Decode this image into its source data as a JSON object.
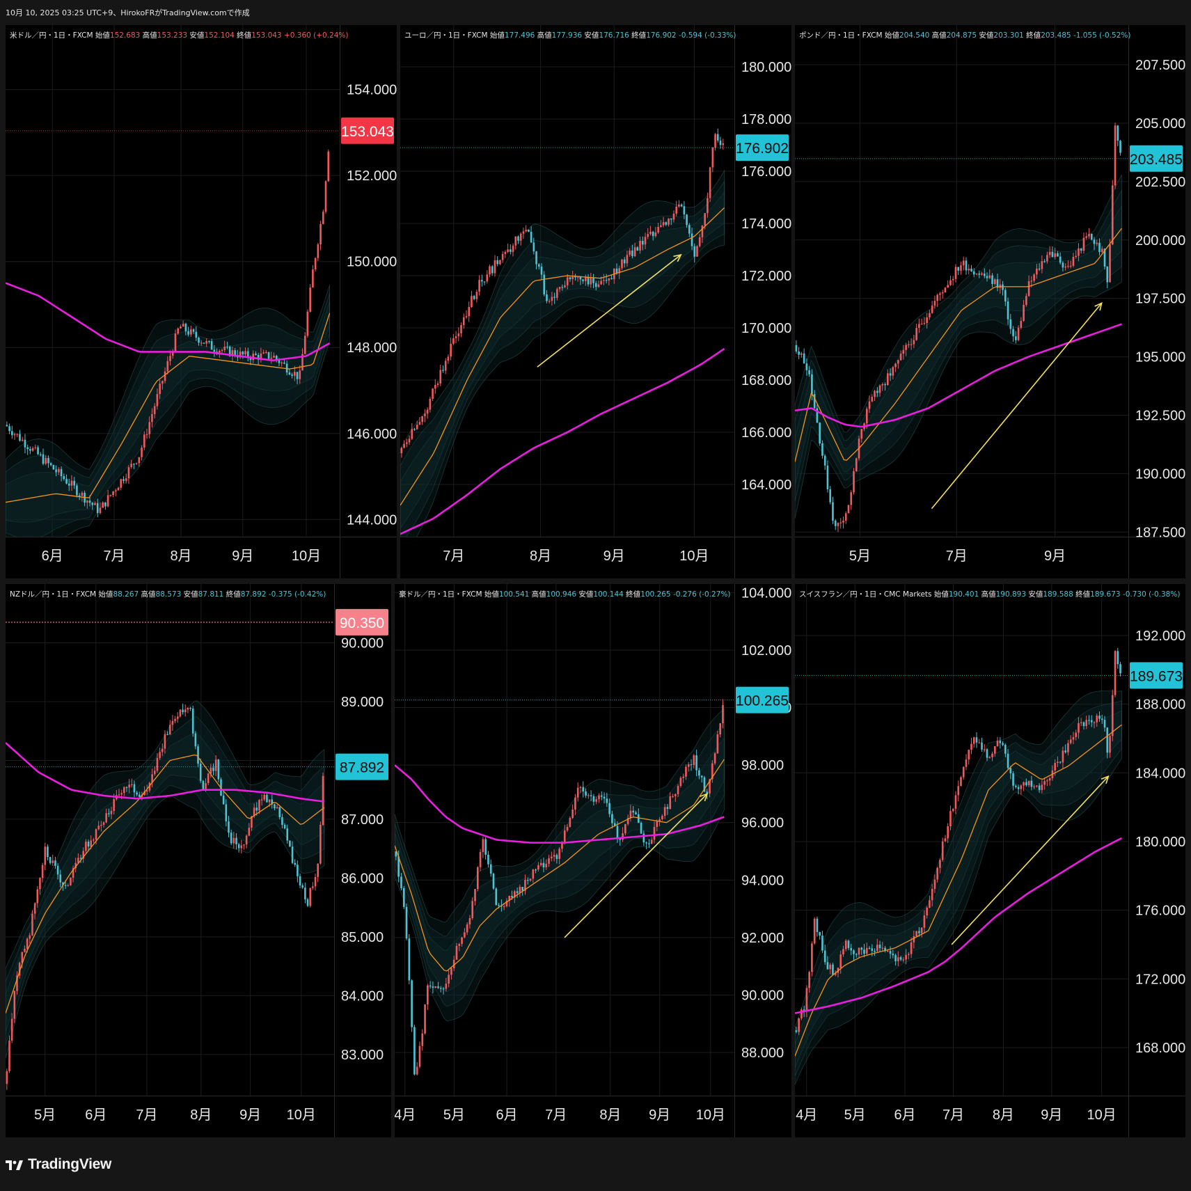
{
  "header": {
    "caption": "10月 10, 2025 03:25 UTC+9、HirokoFRがTradingView.comで作成"
  },
  "footer": {
    "brand": "TradingView"
  },
  "colors": {
    "background": "#000000",
    "frame": "#161616",
    "grid": "#1d1d1d",
    "up_candle": "#f05a5e",
    "down_candle": "#4ec3d3",
    "ema_fast": "#f7931a",
    "ma_long": "#e91ee0",
    "band": "#2d5a55",
    "trend_arrow": "#f5e25c",
    "price_tag_red": "#f23645",
    "price_tag_cyan": "#22c3d6",
    "price_tag_pink": "#f7818b"
  },
  "chart_data": [
    {
      "type": "candlestick",
      "legend": {
        "name": "米ドル／円・1日・FXCM",
        "open_label": "始値",
        "open": "152.683",
        "high_label": "高値",
        "high": "153.233",
        "low_label": "安値",
        "low": "152.104",
        "close_label": "終値",
        "close": "153.043",
        "change": "+0.360 (+0.24%)",
        "direction": "up"
      },
      "y_range": [
        143.6,
        155.5
      ],
      "y_ticks": [
        "154.000",
        "152.000",
        "150.000",
        "148.000",
        "146.000",
        "144.000"
      ],
      "x_ticks": [
        "6月",
        "7月",
        "8月",
        "9月",
        "10月"
      ],
      "x_tick_pos": [
        0.14,
        0.325,
        0.525,
        0.71,
        0.9
      ],
      "price_tag": {
        "text": "153.043",
        "value": 153.043,
        "style": "red"
      },
      "series": [
        {
          "name": "",
          "role": "price",
          "x": [
            0,
            0.28,
            0.4,
            0.52,
            0.62,
            0.72,
            0.8,
            0.88,
            0.92,
            0.95,
            0.97
          ],
          "values": [
            146.2,
            144.2,
            145.5,
            148.5,
            148.0,
            147.8,
            147.8,
            147.3,
            149.8,
            151.2,
            153.0
          ]
        },
        {
          "name": "",
          "role": "ma_long",
          "x": [
            0,
            0.1,
            0.2,
            0.3,
            0.4,
            0.5,
            0.6,
            0.7,
            0.8,
            0.9,
            0.97
          ],
          "values": [
            149.5,
            149.2,
            148.7,
            148.2,
            147.9,
            147.9,
            147.9,
            147.8,
            147.7,
            147.8,
            148.1
          ]
        },
        {
          "name": "",
          "role": "ema_fast",
          "x": [
            0,
            0.15,
            0.25,
            0.35,
            0.45,
            0.55,
            0.65,
            0.75,
            0.85,
            0.92,
            0.97
          ],
          "values": [
            144.4,
            144.6,
            144.5,
            145.8,
            147.2,
            147.8,
            147.7,
            147.6,
            147.5,
            147.6,
            148.8
          ]
        }
      ]
    },
    {
      "type": "candlestick",
      "legend": {
        "name": "ユーロ／円・1日・FXCM",
        "open_label": "始値",
        "open": "177.496",
        "high_label": "高値",
        "high": "177.936",
        "low_label": "安値",
        "low": "176.716",
        "close_label": "終値",
        "close": "176.902",
        "change": "-0.594 (-0.33%)",
        "direction": "down"
      },
      "y_range": [
        162.0,
        181.6
      ],
      "y_ticks": [
        "180.000",
        "178.000",
        "176.000",
        "174.000",
        "172.000",
        "170.000",
        "168.000",
        "166.000",
        "164.000"
      ],
      "x_ticks": [
        "7月",
        "8月",
        "9月",
        "10月"
      ],
      "x_tick_pos": [
        0.16,
        0.42,
        0.64,
        0.88
      ],
      "price_tag": {
        "text": "176.902",
        "value": 176.902,
        "style": "cyan"
      },
      "trend_arrow": {
        "from": [
          0.41,
          168.5
        ],
        "to": [
          0.84,
          172.8
        ]
      },
      "series": [
        {
          "name": "",
          "role": "price",
          "x": [
            0,
            0.08,
            0.16,
            0.24,
            0.32,
            0.38,
            0.44,
            0.52,
            0.6,
            0.7,
            0.78,
            0.84,
            0.88,
            0.91,
            0.94,
            0.97
          ],
          "values": [
            165.2,
            167.0,
            169.5,
            171.8,
            172.9,
            174.0,
            171.0,
            172.0,
            171.6,
            173.0,
            173.8,
            174.8,
            172.8,
            174.0,
            177.5,
            176.9
          ]
        },
        {
          "name": "",
          "role": "ma_long",
          "x": [
            0,
            0.1,
            0.2,
            0.3,
            0.4,
            0.5,
            0.6,
            0.7,
            0.8,
            0.9,
            0.97
          ],
          "values": [
            162.1,
            162.7,
            163.6,
            164.6,
            165.4,
            166.0,
            166.7,
            167.3,
            167.9,
            168.6,
            169.2
          ]
        },
        {
          "name": "",
          "role": "ema_fast",
          "x": [
            0,
            0.1,
            0.2,
            0.3,
            0.4,
            0.5,
            0.6,
            0.7,
            0.8,
            0.88,
            0.97
          ],
          "values": [
            163.2,
            165.2,
            168.0,
            170.4,
            171.8,
            172.0,
            171.9,
            172.3,
            173.0,
            173.5,
            174.6
          ]
        }
      ]
    },
    {
      "type": "candlestick",
      "legend": {
        "name": "ポンド／円・1日・FXCM",
        "open_label": "始値",
        "open": "204.540",
        "high_label": "高値",
        "high": "204.875",
        "low_label": "安値",
        "low": "203.301",
        "close_label": "終値",
        "close": "203.485",
        "change": "-1.055 (-0.52%)",
        "direction": "down"
      },
      "y_range": [
        187.3,
        209.2
      ],
      "y_ticks": [
        "207.500",
        "205.000",
        "202.500",
        "200.000",
        "197.500",
        "195.000",
        "192.500",
        "190.000",
        "187.500"
      ],
      "x_ticks": [
        "5月",
        "7月",
        "9月"
      ],
      "x_tick_pos": [
        0.195,
        0.485,
        0.78
      ],
      "price_tag": {
        "text": "203.485",
        "value": 203.485,
        "style": "cyan"
      },
      "trend_arrow": {
        "from": [
          0.41,
          188.5
        ],
        "to": [
          0.92,
          197.3
        ]
      },
      "series": [
        {
          "name": "",
          "role": "price",
          "x": [
            0,
            0.04,
            0.08,
            0.12,
            0.16,
            0.2,
            0.24,
            0.3,
            0.36,
            0.44,
            0.5,
            0.56,
            0.62,
            0.66,
            0.7,
            0.76,
            0.82,
            0.88,
            0.92,
            0.94,
            0.96,
            0.98
          ],
          "values": [
            195.5,
            194.5,
            191.0,
            187.6,
            188.5,
            192.0,
            193.5,
            194.5,
            196.0,
            197.8,
            199.0,
            198.5,
            198.0,
            195.5,
            198.0,
            199.5,
            198.8,
            200.2,
            199.5,
            198.0,
            205.0,
            203.5
          ]
        },
        {
          "name": "",
          "role": "ma_long",
          "x": [
            0,
            0.05,
            0.1,
            0.15,
            0.2,
            0.3,
            0.4,
            0.5,
            0.6,
            0.7,
            0.8,
            0.9,
            0.98
          ],
          "values": [
            192.7,
            192.8,
            192.4,
            192.1,
            192.0,
            192.3,
            192.8,
            193.6,
            194.4,
            195.0,
            195.5,
            196.0,
            196.4
          ]
        },
        {
          "name": "",
          "role": "ema_fast",
          "x": [
            0,
            0.05,
            0.1,
            0.15,
            0.2,
            0.3,
            0.4,
            0.5,
            0.6,
            0.7,
            0.8,
            0.9,
            0.98
          ],
          "values": [
            190.5,
            193.5,
            192.0,
            190.5,
            191.2,
            193.0,
            195.0,
            197.0,
            198.0,
            198.0,
            198.5,
            199.0,
            200.5
          ]
        }
      ]
    },
    {
      "type": "candlestick",
      "legend": {
        "name": "NZドル／円・1日・FXCM",
        "open_label": "始値",
        "open": "88.267",
        "high_label": "高値",
        "high": "88.573",
        "low_label": "安値",
        "low": "87.811",
        "close_label": "終値",
        "close": "87.892",
        "change": "-0.375 (-0.42%)",
        "direction": "down"
      },
      "y_range": [
        82.3,
        91.0
      ],
      "y_ticks": [
        "90.000",
        "89.000",
        "88.000",
        "87.000",
        "86.000",
        "85.000",
        "84.000",
        "83.000"
      ],
      "x_ticks": [
        "5月",
        "6月",
        "7月",
        "8月",
        "9月",
        "10月"
      ],
      "x_tick_pos": [
        0.12,
        0.275,
        0.43,
        0.595,
        0.745,
        0.9
      ],
      "price_tag": {
        "text": "87.892",
        "value": 87.892,
        "style": "cyan"
      },
      "ref_line": {
        "text": "90.350",
        "value": 90.35,
        "style": "pink"
      },
      "series": [
        {
          "name": "",
          "role": "price",
          "x": [
            0,
            0.03,
            0.07,
            0.12,
            0.18,
            0.24,
            0.3,
            0.36,
            0.42,
            0.48,
            0.52,
            0.56,
            0.6,
            0.64,
            0.68,
            0.72,
            0.76,
            0.8,
            0.84,
            0.88,
            0.92,
            0.95,
            0.97
          ],
          "values": [
            82.5,
            84.3,
            85.0,
            86.5,
            85.8,
            86.5,
            87.0,
            87.6,
            87.4,
            88.3,
            88.8,
            88.9,
            87.5,
            88.0,
            86.7,
            86.5,
            87.2,
            87.4,
            87.0,
            86.2,
            85.6,
            86.2,
            88.0
          ]
        },
        {
          "name": "",
          "role": "ma_long",
          "x": [
            0,
            0.1,
            0.2,
            0.3,
            0.4,
            0.5,
            0.6,
            0.7,
            0.8,
            0.9,
            0.97
          ],
          "values": [
            88.3,
            87.8,
            87.5,
            87.4,
            87.35,
            87.4,
            87.5,
            87.5,
            87.45,
            87.35,
            87.3
          ]
        },
        {
          "name": "",
          "role": "ema_fast",
          "x": [
            0,
            0.06,
            0.12,
            0.2,
            0.3,
            0.4,
            0.5,
            0.58,
            0.66,
            0.74,
            0.82,
            0.9,
            0.97
          ],
          "values": [
            83.7,
            84.7,
            85.4,
            86.1,
            86.8,
            87.3,
            88.0,
            88.1,
            87.5,
            87.0,
            87.3,
            86.9,
            87.2
          ]
        }
      ]
    },
    {
      "type": "candlestick",
      "legend": {
        "name": "豪ドル／円・1日・FXCM",
        "open_label": "始値",
        "open": "100.541",
        "high_label": "高値",
        "high": "100.946",
        "low_label": "安値",
        "low": "100.144",
        "close_label": "終値",
        "close": "100.265",
        "change": "-0.276 (-0.27%)",
        "direction": "down"
      },
      "y_range": [
        86.5,
        104.3
      ],
      "y_ticks": [
        "104.000",
        "102.000",
        "100.000",
        "98.000",
        "96.000",
        "94.000",
        "92.000",
        "90.000",
        "88.000"
      ],
      "x_ticks": [
        "4月",
        "5月",
        "6月",
        "7月",
        "8月",
        "9月",
        "10月"
      ],
      "x_tick_pos": [
        0.03,
        0.175,
        0.33,
        0.475,
        0.635,
        0.78,
        0.93
      ],
      "price_tag": {
        "text": "100.265",
        "value": 100.265,
        "style": "cyan"
      },
      "trend_arrow": {
        "from": [
          0.5,
          92.0
        ],
        "to": [
          0.92,
          97.0
        ]
      },
      "series": [
        {
          "name": "",
          "role": "price",
          "x": [
            0,
            0.03,
            0.06,
            0.1,
            0.14,
            0.18,
            0.22,
            0.26,
            0.3,
            0.36,
            0.42,
            0.48,
            0.54,
            0.58,
            0.62,
            0.66,
            0.7,
            0.74,
            0.8,
            0.84,
            0.88,
            0.92,
            0.95,
            0.97
          ],
          "values": [
            95.0,
            93.0,
            86.8,
            90.5,
            90.0,
            91.5,
            92.5,
            95.5,
            93.0,
            93.5,
            94.5,
            94.8,
            97.3,
            96.8,
            97.0,
            95.3,
            96.5,
            95.2,
            96.5,
            97.5,
            98.2,
            97.0,
            99.0,
            100.3
          ]
        },
        {
          "name": "",
          "role": "ma_long",
          "x": [
            0,
            0.05,
            0.1,
            0.15,
            0.2,
            0.3,
            0.4,
            0.5,
            0.6,
            0.7,
            0.8,
            0.9,
            0.97
          ],
          "values": [
            98.0,
            97.5,
            96.8,
            96.2,
            95.8,
            95.4,
            95.3,
            95.3,
            95.4,
            95.5,
            95.6,
            95.9,
            96.2
          ]
        },
        {
          "name": "",
          "role": "ema_fast",
          "x": [
            0,
            0.05,
            0.1,
            0.15,
            0.2,
            0.25,
            0.3,
            0.4,
            0.5,
            0.6,
            0.7,
            0.8,
            0.88,
            0.97
          ],
          "values": [
            95.2,
            93.5,
            91.5,
            90.8,
            91.3,
            92.4,
            93.0,
            93.8,
            94.6,
            95.6,
            96.2,
            96.0,
            96.6,
            98.2
          ]
        }
      ]
    },
    {
      "type": "candlestick",
      "legend": {
        "name": "スイスフラン／円・1日・CMC Markets",
        "open_label": "始値",
        "open": "190.401",
        "high_label": "高値",
        "high": "190.893",
        "low_label": "安値",
        "low": "189.588",
        "close_label": "終値",
        "close": "189.673",
        "change": "-0.730 (-0.38%)",
        "direction": "down"
      },
      "y_range": [
        165.2,
        195.0
      ],
      "y_ticks": [
        "192.000",
        "188.000",
        "184.000",
        "180.000",
        "176.000",
        "172.000",
        "168.000"
      ],
      "x_ticks": [
        "4月",
        "5月",
        "6月",
        "7月",
        "8月",
        "9月",
        "10月"
      ],
      "x_tick_pos": [
        0.035,
        0.18,
        0.33,
        0.475,
        0.625,
        0.77,
        0.92
      ],
      "price_tag": {
        "text": "189.673",
        "value": 189.673,
        "style": "cyan"
      },
      "trend_arrow": {
        "from": [
          0.47,
          174.0
        ],
        "to": [
          0.94,
          183.8
        ]
      },
      "series": [
        {
          "name": "",
          "role": "price",
          "x": [
            0,
            0.03,
            0.06,
            0.09,
            0.12,
            0.15,
            0.2,
            0.26,
            0.32,
            0.38,
            0.42,
            0.46,
            0.5,
            0.54,
            0.58,
            0.62,
            0.66,
            0.7,
            0.74,
            0.8,
            0.84,
            0.88,
            0.92,
            0.94,
            0.96,
            0.98
          ],
          "values": [
            169.0,
            170.5,
            175.5,
            173.0,
            172.2,
            174.0,
            173.5,
            174.0,
            173.0,
            175.0,
            178.0,
            181.0,
            184.0,
            186.0,
            185.0,
            186.0,
            183.0,
            183.5,
            183.0,
            185.0,
            186.5,
            187.0,
            187.5,
            185.0,
            191.0,
            189.7
          ]
        },
        {
          "name": "",
          "role": "ma_long",
          "x": [
            0,
            0.05,
            0.1,
            0.2,
            0.3,
            0.4,
            0.45,
            0.5,
            0.6,
            0.7,
            0.8,
            0.9,
            0.98
          ],
          "values": [
            170.0,
            170.2,
            170.4,
            170.9,
            171.6,
            172.4,
            173.0,
            173.8,
            175.6,
            177.0,
            178.2,
            179.4,
            180.2
          ]
        },
        {
          "name": "",
          "role": "ema_fast",
          "x": [
            0,
            0.05,
            0.1,
            0.15,
            0.2,
            0.3,
            0.4,
            0.5,
            0.58,
            0.66,
            0.74,
            0.82,
            0.9,
            0.98
          ],
          "values": [
            167.5,
            170.0,
            172.0,
            172.8,
            173.3,
            173.8,
            174.8,
            179.0,
            183.0,
            184.6,
            183.6,
            184.4,
            185.6,
            186.8
          ]
        }
      ]
    }
  ]
}
